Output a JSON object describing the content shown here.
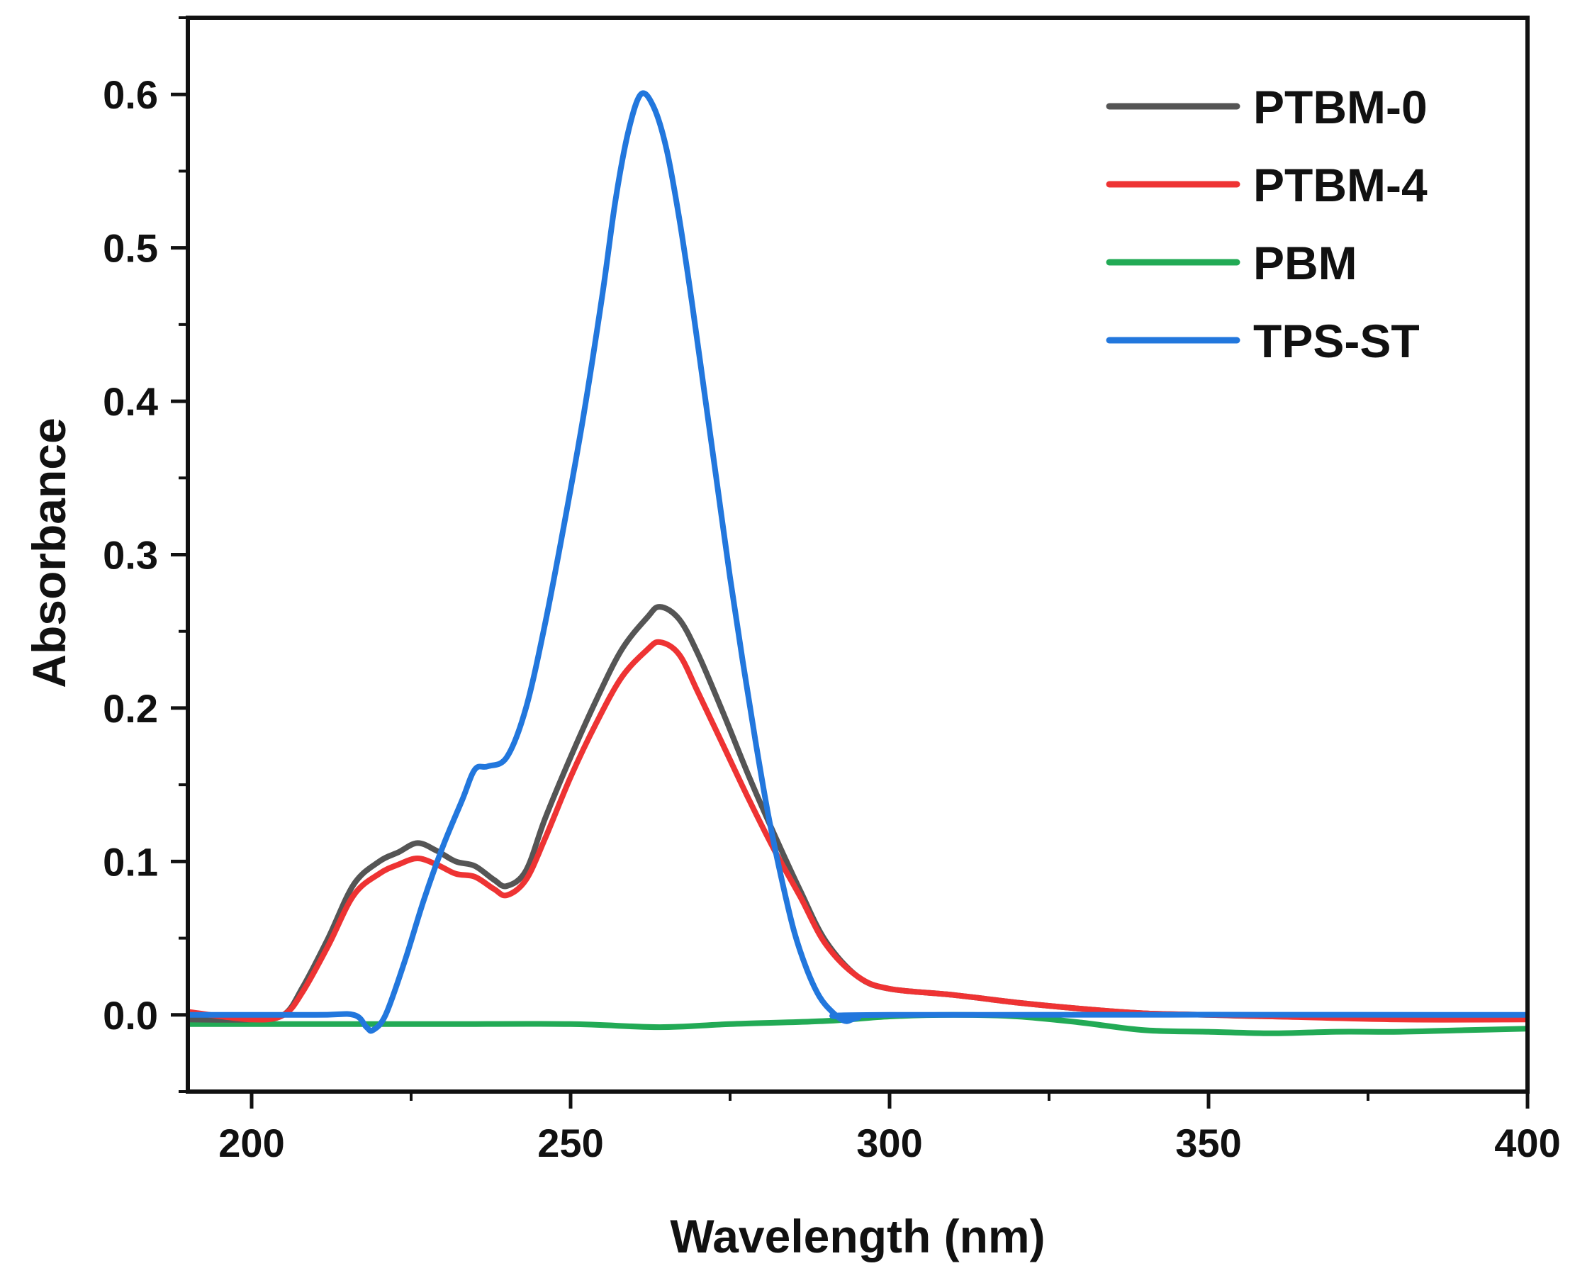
{
  "chart_data": {
    "type": "line",
    "title": "",
    "xlabel": "Wavelength (nm)",
    "ylabel": "Absorbance",
    "xlim": [
      190,
      400
    ],
    "ylim": [
      -0.05,
      0.65
    ],
    "xticks": [
      200,
      250,
      300,
      350,
      400
    ],
    "xtick_labels": [
      "200",
      "250",
      "300",
      "350",
      "400"
    ],
    "yticks": [
      0.0,
      0.1,
      0.2,
      0.3,
      0.4,
      0.5,
      0.6
    ],
    "ytick_labels": [
      "0.0",
      "0.1",
      "0.2",
      "0.3",
      "0.4",
      "0.5",
      "0.6"
    ],
    "grid": false,
    "legend_position": "top-right",
    "series": [
      {
        "name": "PTBM-0",
        "color": "#555555",
        "x": [
          190,
          200,
          205,
          208,
          212,
          216,
          220,
          223,
          226,
          229,
          232,
          235,
          238,
          240,
          243,
          246,
          250,
          254,
          258,
          262,
          264,
          267,
          270,
          274,
          278,
          282,
          286,
          290,
          295,
          300,
          310,
          320,
          330,
          340,
          350,
          360,
          380,
          400
        ],
        "y": [
          -0.003,
          -0.003,
          0.0,
          0.018,
          0.05,
          0.085,
          0.1,
          0.106,
          0.112,
          0.107,
          0.1,
          0.097,
          0.088,
          0.084,
          0.094,
          0.128,
          0.168,
          0.205,
          0.238,
          0.259,
          0.266,
          0.258,
          0.235,
          0.196,
          0.155,
          0.117,
          0.081,
          0.048,
          0.025,
          0.017,
          0.013,
          0.008,
          0.004,
          0.001,
          0.0,
          -0.001,
          -0.002,
          -0.002
        ]
      },
      {
        "name": "PTBM-4",
        "color": "#ee3333",
        "x": [
          190,
          200,
          205,
          208,
          212,
          216,
          220,
          223,
          226,
          229,
          232,
          235,
          238,
          240,
          243,
          246,
          250,
          254,
          258,
          262,
          264,
          267,
          270,
          274,
          278,
          282,
          286,
          290,
          295,
          300,
          310,
          320,
          330,
          340,
          350,
          360,
          380,
          400
        ],
        "y": [
          0.002,
          -0.003,
          0.0,
          0.015,
          0.045,
          0.078,
          0.092,
          0.098,
          0.102,
          0.098,
          0.092,
          0.09,
          0.082,
          0.078,
          0.088,
          0.115,
          0.155,
          0.19,
          0.22,
          0.238,
          0.243,
          0.235,
          0.21,
          0.175,
          0.14,
          0.107,
          0.077,
          0.046,
          0.025,
          0.017,
          0.013,
          0.008,
          0.004,
          0.001,
          0.0,
          -0.001,
          -0.003,
          -0.003
        ]
      },
      {
        "name": "PBM",
        "color": "#22aa55",
        "x": [
          190,
          210,
          230,
          250,
          264,
          275,
          290,
          300,
          310,
          320,
          330,
          340,
          350,
          360,
          370,
          380,
          390,
          400
        ],
        "y": [
          -0.006,
          -0.006,
          -0.006,
          -0.006,
          -0.008,
          -0.006,
          -0.004,
          -0.001,
          0.0,
          -0.001,
          -0.005,
          -0.01,
          -0.011,
          -0.012,
          -0.011,
          -0.011,
          -0.01,
          -0.009
        ]
      },
      {
        "name": "TPS-ST",
        "color": "#2277dd",
        "x": [
          190,
          210,
          216,
          218,
          219,
          221,
          224,
          227,
          230,
          233,
          235,
          237,
          240,
          243,
          246,
          249,
          252,
          255,
          257,
          259,
          261,
          263,
          265,
          267,
          269,
          271,
          273,
          275,
          277,
          279,
          281,
          283,
          285,
          287,
          289,
          291,
          293,
          295,
          300,
          400
        ],
        "y": [
          0.0,
          0.0,
          0.0,
          -0.008,
          -0.01,
          0.0,
          0.035,
          0.075,
          0.11,
          0.14,
          0.16,
          0.162,
          0.168,
          0.2,
          0.255,
          0.32,
          0.39,
          0.47,
          0.53,
          0.575,
          0.6,
          0.592,
          0.565,
          0.52,
          0.465,
          0.405,
          0.345,
          0.285,
          0.23,
          0.178,
          0.13,
          0.09,
          0.055,
          0.03,
          0.012,
          0.002,
          -0.004,
          -0.002,
          0.0,
          0.0
        ]
      }
    ]
  }
}
